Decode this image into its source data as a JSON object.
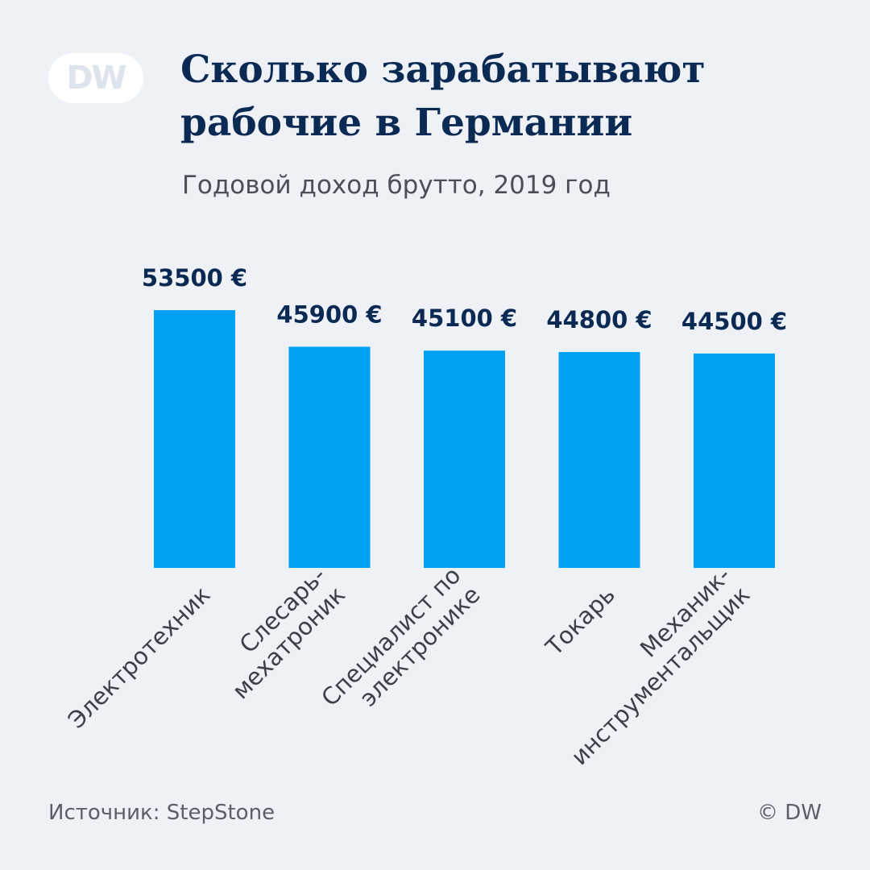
{
  "logo": {
    "text": "DW"
  },
  "header": {
    "title": "Сколько зарабатывают\nрабочие в Германии",
    "subtitle": "Годовой доход брутто, 2019 год"
  },
  "footer": {
    "source": "Источник: StepStone",
    "copyright": "© DW"
  },
  "colors": {
    "bar": "#00a0f5",
    "value_label": "#0b2a53",
    "category_label": "#3c4047"
  },
  "chart_data": {
    "type": "bar",
    "title": "Сколько зарабатывают рабочие в Германии",
    "subtitle": "Годовой доход брутто, 2019 год",
    "categories": [
      [
        "Электротехник"
      ],
      [
        "Слесарь-",
        "мехатроник"
      ],
      [
        "Специалист по",
        "электронике"
      ],
      [
        "Токарь"
      ],
      [
        "Механик-",
        "инструментальщик"
      ]
    ],
    "values": [
      53500,
      45900,
      45100,
      44800,
      44500
    ],
    "value_labels": [
      "53500 €",
      "45900 €",
      "45100 €",
      "44800 €",
      "44500 €"
    ],
    "xlabel": "",
    "ylabel": "",
    "ylim": [
      0,
      53500
    ],
    "grid": false
  }
}
